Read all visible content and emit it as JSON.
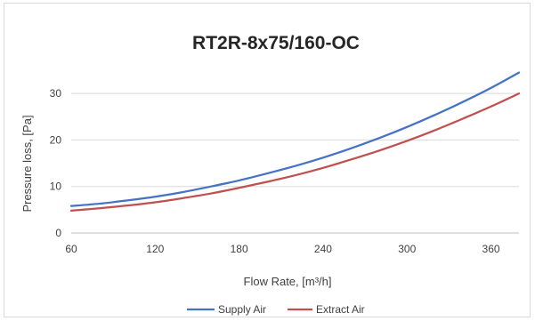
{
  "chart_data": {
    "type": "line",
    "title": "RT2R-8x75/160-OC",
    "xlabel": "Flow Rate, [m³/h]",
    "ylabel": "Pressure loss, [Pa]",
    "xlim": [
      60,
      380
    ],
    "ylim": [
      0,
      35
    ],
    "x_ticks": [
      60,
      120,
      180,
      240,
      300,
      360
    ],
    "y_ticks": [
      0,
      10,
      20,
      30
    ],
    "grid": "horizontal",
    "legend_position": "bottom",
    "x": [
      60,
      80,
      100,
      120,
      140,
      160,
      180,
      200,
      220,
      240,
      260,
      280,
      300,
      320,
      340,
      360,
      380
    ],
    "series": [
      {
        "name": "Supply Air",
        "color": "#4472c4",
        "values": [
          5.8,
          6.3,
          7.0,
          7.8,
          8.8,
          10.0,
          11.3,
          12.8,
          14.4,
          16.2,
          18.2,
          20.4,
          22.8,
          25.4,
          28.2,
          31.2,
          34.5
        ]
      },
      {
        "name": "Extract Air",
        "color": "#c0504d",
        "values": [
          4.8,
          5.3,
          5.9,
          6.6,
          7.5,
          8.5,
          9.7,
          11.0,
          12.4,
          14.0,
          15.8,
          17.7,
          19.8,
          22.1,
          24.6,
          27.2,
          30.0
        ]
      }
    ]
  },
  "colors": {
    "grid": "#d9d9d9",
    "axis": "#bfbfbf"
  }
}
